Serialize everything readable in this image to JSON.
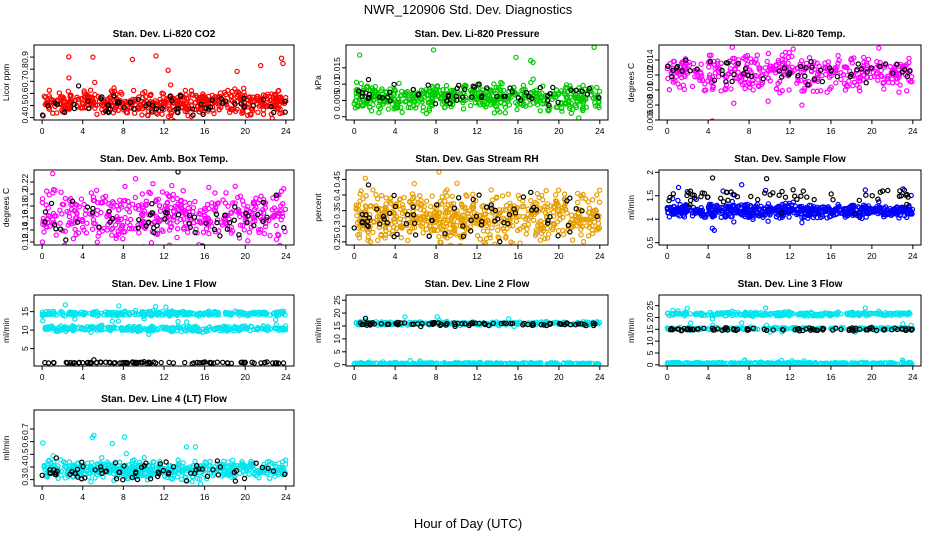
{
  "page": {
    "title": "NWR_120906  Std. Dev. Diagnostics",
    "xlabel": "Hour of Day (UTC)"
  },
  "chart_data": [
    {
      "type": "scatter",
      "title": "Stan. Dev. Li-820 CO2",
      "ylabel": "Licor ppm",
      "xlim": [
        -0.8,
        24.8
      ],
      "ylim": [
        0.38,
        1.0
      ],
      "xticks": [
        0,
        4,
        8,
        12,
        16,
        20,
        24
      ],
      "yticks": [
        0.4,
        0.5,
        0.6,
        0.7,
        0.8,
        0.9
      ],
      "series": [
        {
          "color": "#ff0000",
          "center": 0.52,
          "spread": 0.05,
          "count": 520
        },
        {
          "color": "#000000",
          "center": 0.5,
          "spread": 0.04,
          "count": 60
        }
      ]
    },
    {
      "type": "scatter",
      "title": "Stan. Dev. Li-820 Pressure",
      "ylabel": "kPa",
      "xlim": [
        -0.8,
        24.8
      ],
      "ylim": [
        -0.001,
        0.022
      ],
      "xticks": [
        0,
        4,
        8,
        12,
        16,
        20,
        24
      ],
      "yticks": [
        0.0,
        0.005,
        0.01,
        0.015
      ],
      "series": [
        {
          "color": "#00cc00",
          "center": 0.006,
          "spread": 0.002,
          "count": 520
        },
        {
          "color": "#000000",
          "center": 0.007,
          "spread": 0.0015,
          "count": 60
        }
      ]
    },
    {
      "type": "scatter",
      "title": "Stan. Dev. Li-820 Temp.",
      "ylabel": "degrees C",
      "xlim": [
        -0.8,
        24.8
      ],
      "ylim": [
        0.006,
        0.016
      ],
      "xticks": [
        0,
        4,
        8,
        12,
        16,
        20,
        24
      ],
      "yticks": [
        0.006,
        0.008,
        0.01,
        0.012,
        0.014
      ],
      "series": [
        {
          "color": "#ff00ff",
          "center": 0.0123,
          "spread": 0.0012,
          "count": 420
        },
        {
          "color": "#000000",
          "center": 0.0125,
          "spread": 0.0008,
          "count": 60
        }
      ]
    },
    {
      "type": "scatter",
      "title": "Stan. Dev. Amb. Box Temp.",
      "ylabel": "degrees C",
      "xlim": [
        -0.8,
        24.8
      ],
      "ylim": [
        0.115,
        0.24
      ],
      "xticks": [
        0,
        4,
        8,
        12,
        16,
        20,
        24
      ],
      "yticks": [
        0.12,
        0.14,
        0.16,
        0.18,
        0.2,
        0.22
      ],
      "series": [
        {
          "color": "#ff00ff",
          "center": 0.165,
          "spread": 0.022,
          "count": 460
        },
        {
          "color": "#000000",
          "center": 0.155,
          "spread": 0.015,
          "count": 60
        }
      ]
    },
    {
      "type": "scatter",
      "title": "Stan. Dev. Gas Stream RH",
      "ylabel": "percent",
      "xlim": [
        -0.8,
        24.8
      ],
      "ylim": [
        0.24,
        0.48
      ],
      "xticks": [
        0,
        4,
        8,
        12,
        16,
        20,
        24
      ],
      "yticks": [
        0.25,
        0.3,
        0.35,
        0.4,
        0.45
      ],
      "series": [
        {
          "color": "#e69f00",
          "center": 0.33,
          "spread": 0.04,
          "count": 620
        },
        {
          "color": "#000000",
          "center": 0.33,
          "spread": 0.035,
          "count": 70
        }
      ]
    },
    {
      "type": "scatter",
      "title": "Stan. Dev. Sample Flow",
      "ylabel": "ml/min",
      "xlim": [
        -0.8,
        24.8
      ],
      "ylim": [
        0.45,
        2.05
      ],
      "xticks": [
        0,
        4,
        8,
        12,
        16,
        20,
        24
      ],
      "yticks": [
        0.5,
        1.0,
        1.5,
        2.0
      ],
      "series": [
        {
          "color": "#0000ff",
          "center": 1.18,
          "spread": 0.07,
          "count": 620
        },
        {
          "color": "#000000",
          "center": 1.5,
          "spread": 0.08,
          "count": 60
        }
      ]
    },
    {
      "type": "scatter",
      "title": "Stan. Dev. Line 1 Flow",
      "ylabel": "ml/min",
      "xlim": [
        -0.8,
        24.8
      ],
      "ylim": [
        0.3,
        19.5
      ],
      "xticks": [
        0,
        4,
        8,
        12,
        16,
        20,
        24
      ],
      "yticks": [
        5,
        10,
        15
      ],
      "series": [
        {
          "color": "#00e5ee",
          "center": 14.5,
          "spread": 0.3,
          "count": 300
        },
        {
          "color": "#00e5ee",
          "center": 10.4,
          "spread": 0.35,
          "count": 300
        },
        {
          "color": "#000000",
          "center": 1.2,
          "spread": 0.1,
          "count": 90
        }
      ]
    },
    {
      "type": "scatter",
      "title": "Stan. Dev. Line 2 Flow",
      "ylabel": "ml/min",
      "xlim": [
        -0.8,
        24.8
      ],
      "ylim": [
        -0.5,
        27
      ],
      "xticks": [
        0,
        4,
        8,
        12,
        16,
        20,
        24
      ],
      "yticks": [
        0,
        5,
        10,
        15,
        20,
        25
      ],
      "series": [
        {
          "color": "#00e5ee",
          "center": 16,
          "spread": 0.35,
          "count": 260
        },
        {
          "color": "#00e5ee",
          "center": 0.4,
          "spread": 0.2,
          "count": 300
        },
        {
          "color": "#000000",
          "center": 15.8,
          "spread": 0.3,
          "count": 90
        }
      ]
    },
    {
      "type": "scatter",
      "title": "Stan. Dev. Line 3 Flow",
      "ylabel": "ml/min",
      "xlim": [
        -0.8,
        24.8
      ],
      "ylim": [
        -0.5,
        29.5
      ],
      "xticks": [
        0,
        4,
        8,
        12,
        16,
        20,
        24
      ],
      "yticks": [
        0,
        5,
        10,
        15,
        20,
        25
      ],
      "series": [
        {
          "color": "#00e5ee",
          "center": 21.5,
          "spread": 0.4,
          "count": 280
        },
        {
          "color": "#00e5ee",
          "center": 15.3,
          "spread": 0.3,
          "count": 200
        },
        {
          "color": "#00e5ee",
          "center": 0.6,
          "spread": 0.2,
          "count": 300
        },
        {
          "color": "#000000",
          "center": 15,
          "spread": 0.35,
          "count": 90
        }
      ]
    },
    {
      "type": "scatter",
      "title": "Stan. Dev. Line 4 (LT) Flow",
      "ylabel": "ml/min",
      "xlim": [
        -0.8,
        24.8
      ],
      "ylim": [
        0.25,
        0.85
      ],
      "xticks": [
        0,
        4,
        8,
        12,
        16,
        20,
        24
      ],
      "yticks": [
        0.3,
        0.4,
        0.5,
        0.6,
        0.7
      ],
      "series": [
        {
          "color": "#00e5ee",
          "center": 0.38,
          "spread": 0.035,
          "count": 520
        },
        {
          "color": "#000000",
          "center": 0.37,
          "spread": 0.035,
          "count": 70
        }
      ]
    }
  ]
}
